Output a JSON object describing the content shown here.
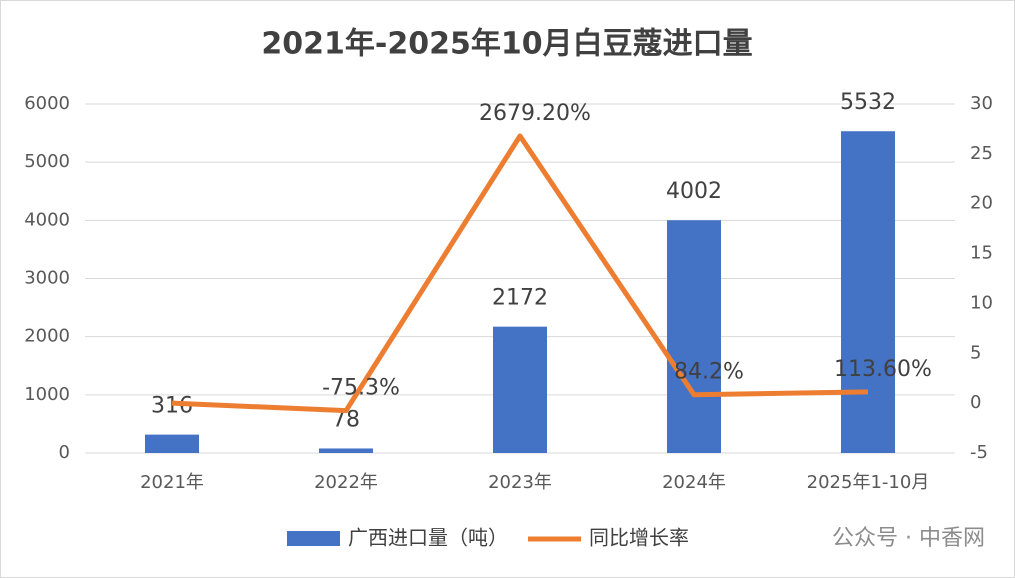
{
  "chart_data": {
    "type": "bar-line",
    "title": "2021年-2025年10月白豆蔻进口量",
    "categories": [
      "2021年",
      "2022年",
      "2023年",
      "2024年",
      "2025年1-10月"
    ],
    "series": [
      {
        "name": "广西进口量（吨）",
        "type": "bar",
        "color": "#4472C4",
        "values": [
          316,
          78,
          2172,
          4002,
          5532
        ]
      },
      {
        "name": "同比增长率",
        "type": "line",
        "axis": "y2",
        "color": "#ED7D31",
        "values": [
          0,
          -0.753,
          26.792,
          0.842,
          1.136
        ],
        "value_labels": [
          null,
          "-75.3%",
          "2679.20%",
          "84.2%",
          "113.60%"
        ]
      }
    ],
    "ylim": [
      0,
      6000
    ],
    "yticks": [
      0,
      1000,
      2000,
      3000,
      4000,
      5000,
      6000
    ],
    "y2lim": [
      -5,
      30
    ],
    "y2ticks": [
      -5,
      0,
      5,
      10,
      15,
      20,
      25,
      30
    ],
    "grid": true,
    "legend": "bottom",
    "watermark": "公众号 · 中香网"
  }
}
